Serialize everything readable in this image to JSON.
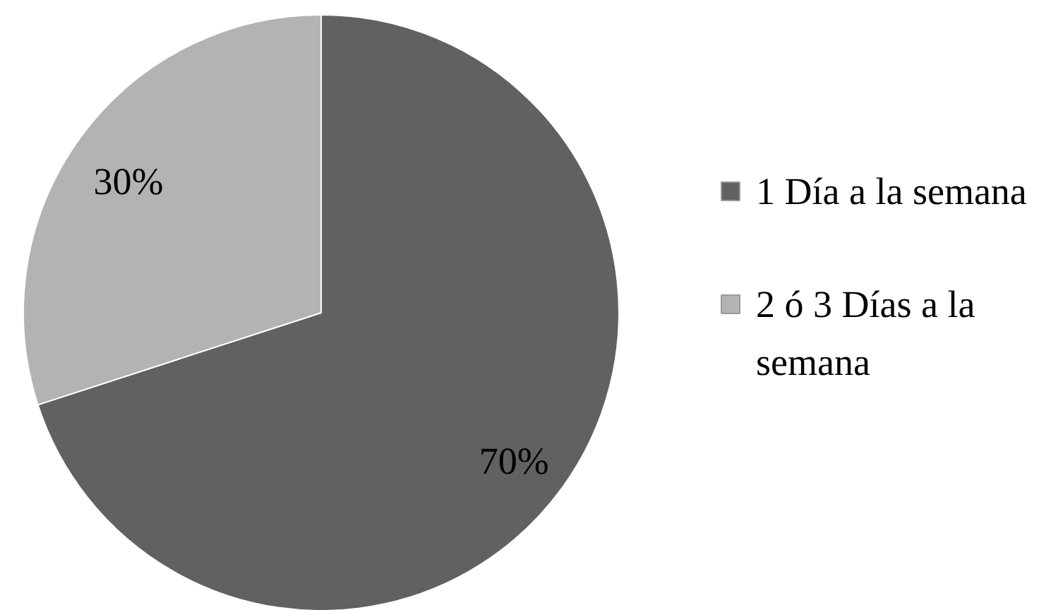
{
  "chart_data": {
    "type": "pie",
    "categories": [
      "1 Día a la semana",
      "2 ó 3 Días a la semana"
    ],
    "values": [
      70,
      30
    ],
    "colors": [
      "#616161",
      "#b3b3b3"
    ],
    "value_labels": [
      "70%",
      "30%"
    ],
    "legend": "right"
  }
}
